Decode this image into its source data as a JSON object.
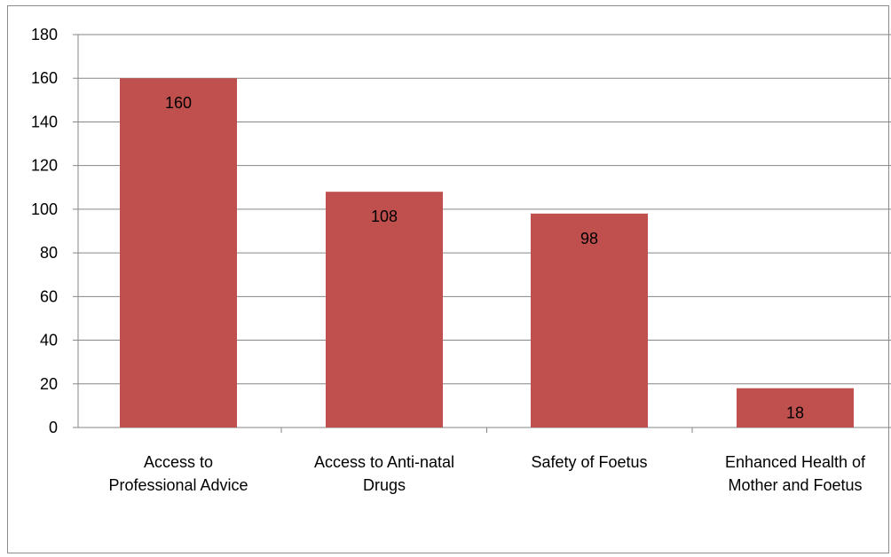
{
  "chart_data": {
    "type": "bar",
    "categories": [
      [
        "Access to",
        "Professional Advice"
      ],
      [
        "Access to Anti-natal",
        "Drugs"
      ],
      [
        "Safety of Foetus"
      ],
      [
        "Enhanced Health of",
        "Mother and Foetus"
      ]
    ],
    "values": [
      160,
      108,
      98,
      18
    ],
    "data_labels": [
      "160",
      "108",
      "98",
      "18"
    ],
    "title": "",
    "xlabel": "",
    "ylabel": "",
    "ylim": [
      0,
      180
    ],
    "yticks": [
      0,
      20,
      40,
      60,
      80,
      100,
      120,
      140,
      160,
      180
    ],
    "grid": true,
    "legend": "none",
    "bar_color": "#c0504d",
    "grid_color": "#868686"
  }
}
